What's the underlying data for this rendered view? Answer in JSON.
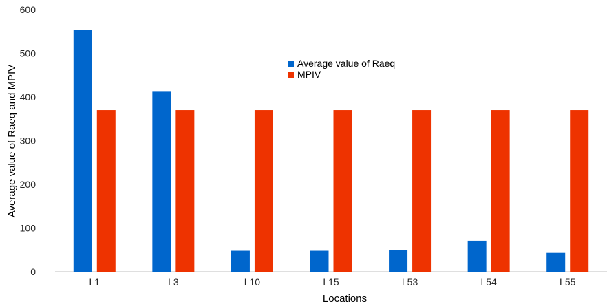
{
  "chart_data": {
    "type": "bar",
    "categories": [
      "L1",
      "L3",
      "L10",
      "L15",
      "L53",
      "L54",
      "L55"
    ],
    "series": [
      {
        "name": "Average value of Raeq",
        "color": "#0066CC",
        "values": [
          553,
          412,
          48,
          48,
          49,
          71,
          43
        ]
      },
      {
        "name": "MPIV",
        "color": "#EE3300",
        "values": [
          370,
          370,
          370,
          370,
          370,
          370,
          370
        ]
      }
    ],
    "title": "",
    "xlabel": "Locations",
    "ylabel": "Average value of Raeq and MPIV",
    "ylim": [
      0,
      600
    ],
    "yticks": [
      0,
      100,
      200,
      300,
      400,
      500,
      600
    ],
    "grid": false,
    "legend_position": "top-center"
  }
}
